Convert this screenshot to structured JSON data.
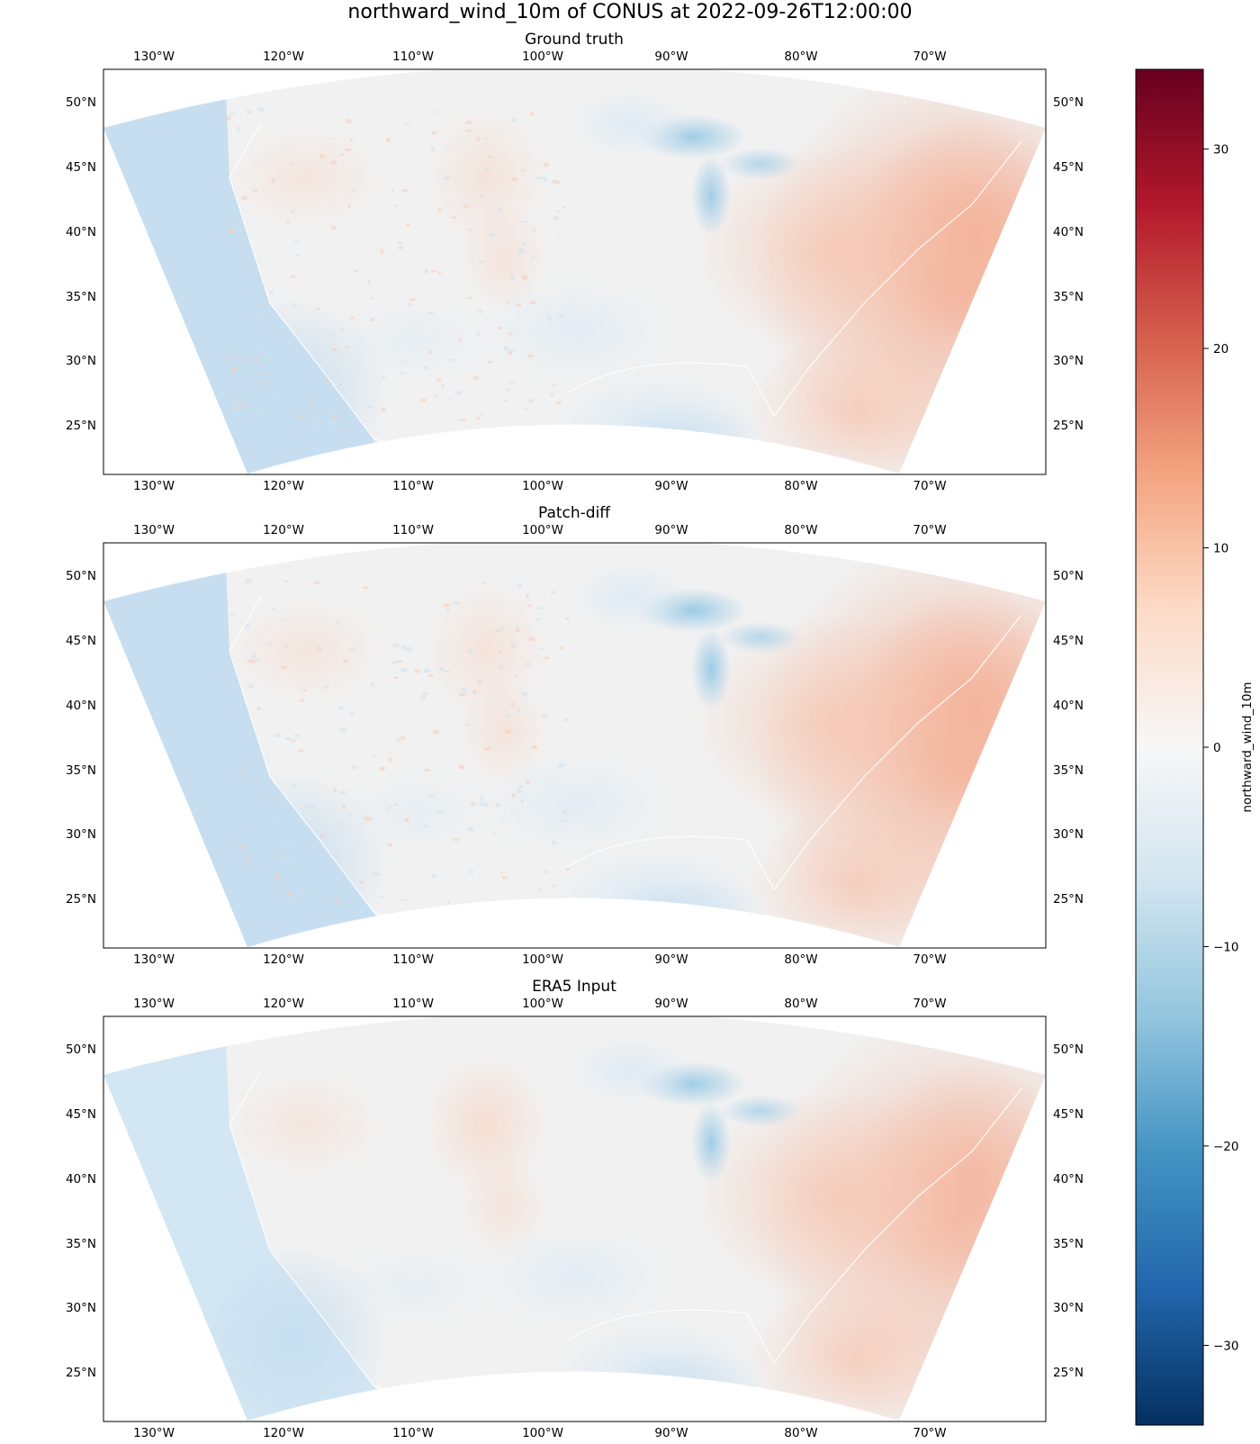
{
  "title": "northward_wind_10m of CONUS at 2022-09-26T12:00:00",
  "panels": [
    {
      "title": "Ground truth",
      "pattern": "truth"
    },
    {
      "title": "Patch-diff",
      "pattern": "patch"
    },
    {
      "title": "ERA5 Input",
      "pattern": "era5"
    }
  ],
  "lon_labels": [
    "130°W",
    "120°W",
    "110°W",
    "100°W",
    "90°W",
    "80°W",
    "70°W"
  ],
  "lat_labels": [
    "50°N",
    "45°N",
    "40°N",
    "35°N",
    "30°N",
    "25°N"
  ],
  "colorbar": {
    "label": "northward_wind_10m",
    "ticks": [
      {
        "value": 30,
        "label": "30"
      },
      {
        "value": 20,
        "label": "20"
      },
      {
        "value": 10,
        "label": "10"
      },
      {
        "value": 0,
        "label": "0"
      },
      {
        "value": -10,
        "label": "−10"
      },
      {
        "value": -20,
        "label": "−20"
      },
      {
        "value": -30,
        "label": "−30"
      }
    ],
    "range": [
      -34,
      34
    ],
    "colormap": "RdBu_r",
    "colors": [
      "#053061",
      "#2166ac",
      "#4393c3",
      "#92c5de",
      "#d1e5f0",
      "#f7f7f7",
      "#fddbc7",
      "#f4a582",
      "#d6604d",
      "#b2182b",
      "#67001f"
    ]
  },
  "map_colors": {
    "ocean_blue": "#c6def0",
    "land_neutral": "#f1f1f1",
    "lakes_blue": "#9ccbe6",
    "east_red": "#f4b39a"
  }
}
